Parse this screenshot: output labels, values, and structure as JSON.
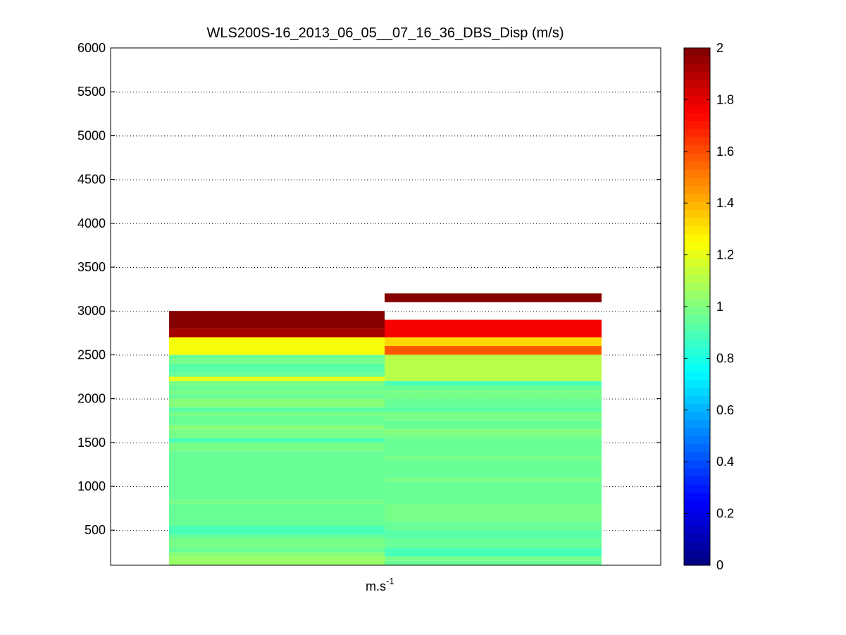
{
  "chart_data": {
    "type": "heatmap",
    "title": "WLS200S-16_2013_06_05__07_16_36_DBS_Disp (m/s)",
    "xlabel": {
      "base": "m.s",
      "sup": "-1"
    },
    "ylabel": "",
    "ylim": [
      100,
      6000
    ],
    "yticks": [
      500,
      1000,
      1500,
      2000,
      2500,
      3000,
      3500,
      4000,
      4500,
      5000,
      5500,
      6000
    ],
    "ygrid": "dotted",
    "colorbar": {
      "colormap": "jet",
      "clim": [
        0,
        2
      ],
      "ticks": [
        0,
        0.2,
        0.4,
        0.6,
        0.8,
        1,
        1.2,
        1.4,
        1.6,
        1.8,
        2
      ],
      "tick_labels": [
        "0",
        "0.2",
        "0.4",
        "0.6",
        "0.8",
        "1",
        "1.2",
        "1.4",
        "1.6",
        "1.8",
        "2"
      ]
    },
    "columns": [
      {
        "bins": [
          {
            "y0": 100,
            "y1": 200,
            "v": 1.06
          },
          {
            "y0": 200,
            "y1": 250,
            "v": 1.02
          },
          {
            "y0": 250,
            "y1": 300,
            "v": 0.96
          },
          {
            "y0": 300,
            "y1": 400,
            "v": 0.98
          },
          {
            "y0": 400,
            "y1": 450,
            "v": 0.94
          },
          {
            "y0": 450,
            "y1": 550,
            "v": 0.9
          },
          {
            "y0": 550,
            "y1": 650,
            "v": 0.96
          },
          {
            "y0": 650,
            "y1": 800,
            "v": 0.95
          },
          {
            "y0": 800,
            "y1": 850,
            "v": 0.98
          },
          {
            "y0": 850,
            "y1": 1400,
            "v": 0.95
          },
          {
            "y0": 1400,
            "y1": 1500,
            "v": 0.97
          },
          {
            "y0": 1500,
            "y1": 1550,
            "v": 0.9
          },
          {
            "y0": 1550,
            "y1": 1650,
            "v": 0.97
          },
          {
            "y0": 1650,
            "y1": 1700,
            "v": 1.0
          },
          {
            "y0": 1700,
            "y1": 1800,
            "v": 0.95
          },
          {
            "y0": 1800,
            "y1": 1850,
            "v": 0.98
          },
          {
            "y0": 1850,
            "y1": 1900,
            "v": 0.92
          },
          {
            "y0": 1900,
            "y1": 2000,
            "v": 1.0
          },
          {
            "y0": 2000,
            "y1": 2050,
            "v": 0.96
          },
          {
            "y0": 2050,
            "y1": 2100,
            "v": 0.98
          },
          {
            "y0": 2100,
            "y1": 2150,
            "v": 0.94
          },
          {
            "y0": 2150,
            "y1": 2200,
            "v": 0.97
          },
          {
            "y0": 2200,
            "y1": 2250,
            "v": 1.2
          },
          {
            "y0": 2250,
            "y1": 2300,
            "v": 0.96
          },
          {
            "y0": 2300,
            "y1": 2400,
            "v": 0.93
          },
          {
            "y0": 2400,
            "y1": 2450,
            "v": 0.98
          },
          {
            "y0": 2450,
            "y1": 2500,
            "v": 0.95
          },
          {
            "y0": 2500,
            "y1": 2700,
            "v": 1.22
          },
          {
            "y0": 2700,
            "y1": 2800,
            "v": 1.92
          },
          {
            "y0": 2800,
            "y1": 3000,
            "v": 2.0
          }
        ]
      },
      {
        "bins": [
          {
            "y0": 100,
            "y1": 150,
            "v": 0.96
          },
          {
            "y0": 150,
            "y1": 200,
            "v": 0.98
          },
          {
            "y0": 200,
            "y1": 300,
            "v": 0.9
          },
          {
            "y0": 300,
            "y1": 400,
            "v": 0.94
          },
          {
            "y0": 400,
            "y1": 500,
            "v": 0.92
          },
          {
            "y0": 500,
            "y1": 600,
            "v": 0.96
          },
          {
            "y0": 600,
            "y1": 800,
            "v": 0.98
          },
          {
            "y0": 800,
            "y1": 900,
            "v": 0.96
          },
          {
            "y0": 900,
            "y1": 1050,
            "v": 0.95
          },
          {
            "y0": 1050,
            "y1": 1100,
            "v": 0.98
          },
          {
            "y0": 1100,
            "y1": 1300,
            "v": 0.95
          },
          {
            "y0": 1300,
            "y1": 1350,
            "v": 0.98
          },
          {
            "y0": 1350,
            "y1": 1550,
            "v": 0.95
          },
          {
            "y0": 1550,
            "y1": 1600,
            "v": 0.98
          },
          {
            "y0": 1600,
            "y1": 1650,
            "v": 1.0
          },
          {
            "y0": 1650,
            "y1": 1750,
            "v": 0.95
          },
          {
            "y0": 1750,
            "y1": 1850,
            "v": 0.97
          },
          {
            "y0": 1850,
            "y1": 1900,
            "v": 0.92
          },
          {
            "y0": 1900,
            "y1": 2000,
            "v": 0.96
          },
          {
            "y0": 2000,
            "y1": 2100,
            "v": 0.98
          },
          {
            "y0": 2100,
            "y1": 2150,
            "v": 0.95
          },
          {
            "y0": 2150,
            "y1": 2200,
            "v": 0.88
          },
          {
            "y0": 2200,
            "y1": 2500,
            "v": 1.1
          },
          {
            "y0": 2500,
            "y1": 2600,
            "v": 1.58
          },
          {
            "y0": 2600,
            "y1": 2700,
            "v": 1.32
          },
          {
            "y0": 2700,
            "y1": 2900,
            "v": 1.78
          },
          {
            "y0": 3100,
            "y1": 3200,
            "v": 2.0
          }
        ]
      }
    ]
  }
}
